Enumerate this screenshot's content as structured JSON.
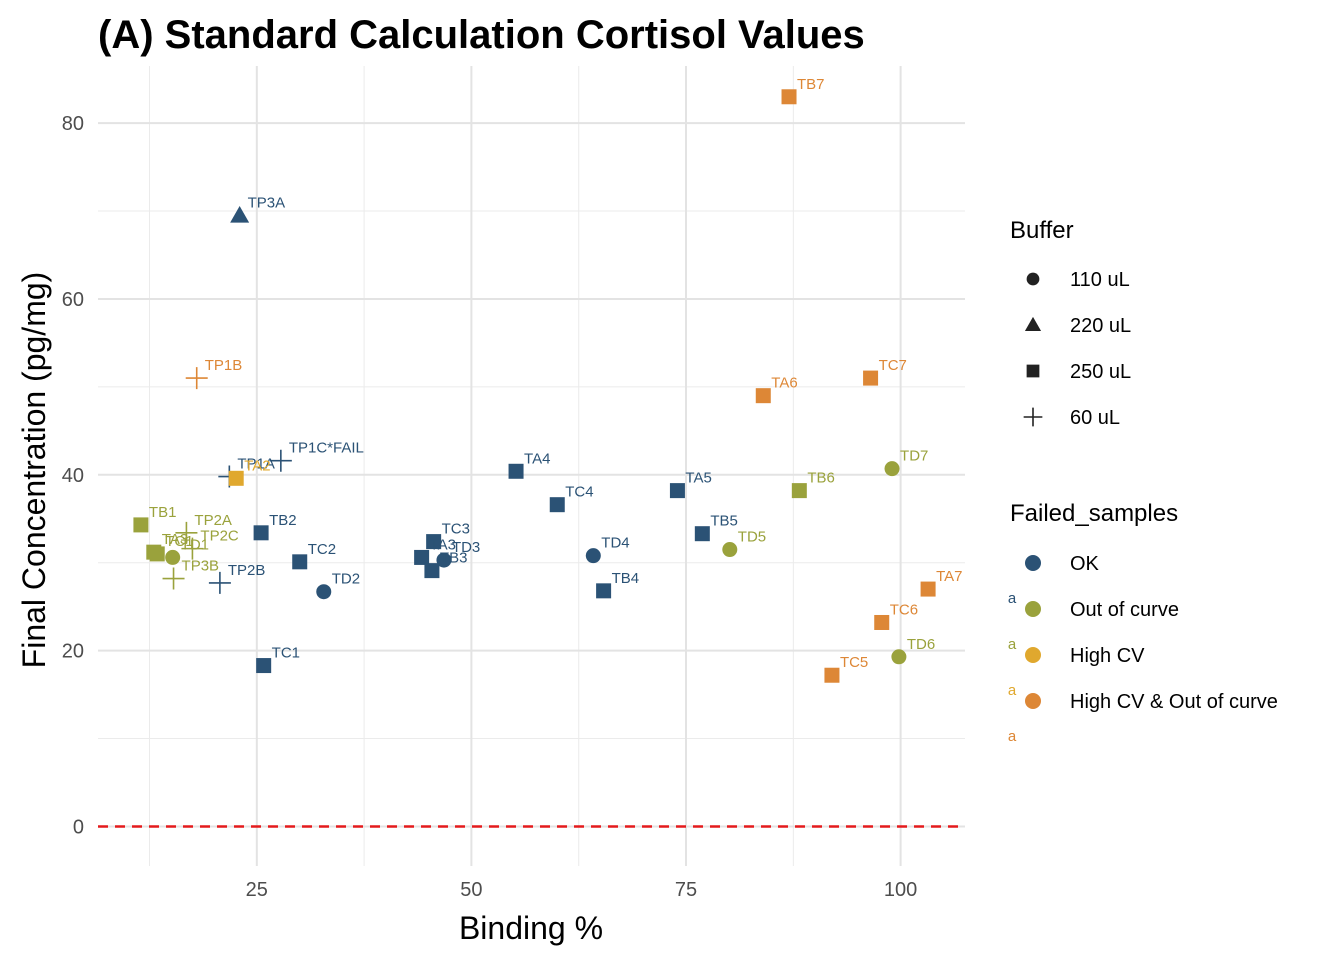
{
  "chart_data": {
    "type": "scatter",
    "title": "(A) Standard Calculation Cortisol Values",
    "xlabel": "Binding %",
    "ylabel": "Final Concentration (pg/mg)",
    "xlim": [
      6.5,
      107.5
    ],
    "ylim": [
      -4.5,
      86.5
    ],
    "x_ticks": [
      25,
      50,
      75,
      100
    ],
    "y_ticks": [
      0,
      20,
      40,
      60,
      80
    ],
    "x_tick_labels": [
      "25",
      "50",
      "75",
      "100"
    ],
    "y_tick_labels": [
      "0",
      "20",
      "40",
      "60",
      "80"
    ],
    "grid": true,
    "reference_line": {
      "y": 0,
      "color": "#e41a1c",
      "style": "dashed"
    },
    "legends": {
      "shape": {
        "title": "Buffer",
        "items": [
          {
            "key": "110 uL",
            "label": "110 uL",
            "shape": "circle"
          },
          {
            "key": "220 uL",
            "label": "220 uL",
            "shape": "triangle"
          },
          {
            "key": "250 uL",
            "label": "250 uL",
            "shape": "square"
          },
          {
            "key": "60 uL",
            "label": "60 uL",
            "shape": "plus"
          }
        ]
      },
      "color": {
        "title": "Failed_samples",
        "items": [
          {
            "key": "OK",
            "label": "OK",
            "color": "#2b5275"
          },
          {
            "key": "Out of curve",
            "label": "Out of curve",
            "color": "#9aa23c"
          },
          {
            "key": "High CV",
            "label": "High CV",
            "color": "#e0a82e"
          },
          {
            "key": "High CV & Out of curve",
            "label": "High CV & Out of curve",
            "color": "#dd8736"
          }
        ],
        "key_glyph_text": "a"
      }
    },
    "points": [
      {
        "label": "TB7",
        "x": 87.0,
        "y": 83.0,
        "buffer": "250 uL",
        "status": "High CV & Out of curve"
      },
      {
        "label": "TP3A",
        "x": 23.0,
        "y": 69.5,
        "buffer": "220 uL",
        "status": "OK"
      },
      {
        "label": "TP1B",
        "x": 18.0,
        "y": 51.0,
        "buffer": "60 uL",
        "status": "High CV & Out of curve"
      },
      {
        "label": "TA6",
        "x": 84.0,
        "y": 49.0,
        "buffer": "250 uL",
        "status": "High CV & Out of curve"
      },
      {
        "label": "TC7",
        "x": 96.5,
        "y": 51.0,
        "buffer": "250 uL",
        "status": "High CV & Out of curve"
      },
      {
        "label": "TP1C*FAIL",
        "x": 27.8,
        "y": 41.6,
        "buffer": "60 uL",
        "status": "OK"
      },
      {
        "label": "TP1A",
        "x": 21.8,
        "y": 39.8,
        "buffer": "60 uL",
        "status": "OK"
      },
      {
        "label": "TA2",
        "x": 22.6,
        "y": 39.6,
        "buffer": "250 uL",
        "status": "High CV"
      },
      {
        "label": "TA4",
        "x": 55.2,
        "y": 40.4,
        "buffer": "250 uL",
        "status": "OK"
      },
      {
        "label": "TC4",
        "x": 60.0,
        "y": 36.6,
        "buffer": "250 uL",
        "status": "OK"
      },
      {
        "label": "TA5",
        "x": 74.0,
        "y": 38.2,
        "buffer": "250 uL",
        "status": "OK"
      },
      {
        "label": "TB6",
        "x": 88.2,
        "y": 38.2,
        "buffer": "250 uL",
        "status": "Out of curve"
      },
      {
        "label": "TD7",
        "x": 99.0,
        "y": 40.7,
        "buffer": "110 uL",
        "status": "Out of curve"
      },
      {
        "label": "TB1",
        "x": 11.5,
        "y": 34.3,
        "buffer": "250 uL",
        "status": "Out of curve"
      },
      {
        "label": "TP2A",
        "x": 16.8,
        "y": 33.4,
        "buffer": "60 uL",
        "status": "Out of curve"
      },
      {
        "label": "TP2C",
        "x": 17.5,
        "y": 31.6,
        "buffer": "60 uL",
        "status": "Out of curve"
      },
      {
        "label": "TA3",
        "x": 13.0,
        "y": 31.2,
        "buffer": "250 uL",
        "status": "Out of curve"
      },
      {
        "label": "TC1",
        "x": 13.4,
        "y": 31.0,
        "buffer": "250 uL",
        "status": "Out of curve"
      },
      {
        "label": "TD1",
        "x": 15.2,
        "y": 30.6,
        "buffer": "110 uL",
        "status": "Out of curve"
      },
      {
        "label": "TP3B",
        "x": 15.3,
        "y": 28.2,
        "buffer": "60 uL",
        "status": "Out of curve"
      },
      {
        "label": "TB2",
        "x": 25.5,
        "y": 33.4,
        "buffer": "250 uL",
        "status": "OK"
      },
      {
        "label": "TP2B",
        "x": 20.7,
        "y": 27.7,
        "buffer": "60 uL",
        "status": "OK"
      },
      {
        "label": "TC2",
        "x": 30.0,
        "y": 30.1,
        "buffer": "250 uL",
        "status": "OK"
      },
      {
        "label": "TD2",
        "x": 32.8,
        "y": 26.7,
        "buffer": "110 uL",
        "status": "OK"
      },
      {
        "label": "TC1",
        "x": 25.8,
        "y": 18.3,
        "buffer": "250 uL",
        "status": "OK"
      },
      {
        "label": "TC3",
        "x": 45.6,
        "y": 32.4,
        "buffer": "250 uL",
        "status": "OK"
      },
      {
        "label": "TA3",
        "x": 44.2,
        "y": 30.6,
        "buffer": "250 uL",
        "status": "OK"
      },
      {
        "label": "TD3",
        "x": 46.8,
        "y": 30.3,
        "buffer": "110 uL",
        "status": "OK"
      },
      {
        "label": "TB3",
        "x": 45.4,
        "y": 29.1,
        "buffer": "250 uL",
        "status": "OK"
      },
      {
        "label": "TD4",
        "x": 64.2,
        "y": 30.8,
        "buffer": "110 uL",
        "status": "OK"
      },
      {
        "label": "TB4",
        "x": 65.4,
        "y": 26.8,
        "buffer": "250 uL",
        "status": "OK"
      },
      {
        "label": "TB5",
        "x": 76.9,
        "y": 33.3,
        "buffer": "250 uL",
        "status": "OK"
      },
      {
        "label": "TD5",
        "x": 80.1,
        "y": 31.5,
        "buffer": "110 uL",
        "status": "Out of curve"
      },
      {
        "label": "TA7",
        "x": 103.2,
        "y": 27.0,
        "buffer": "250 uL",
        "status": "High CV & Out of curve"
      },
      {
        "label": "TC6",
        "x": 97.8,
        "y": 23.2,
        "buffer": "250 uL",
        "status": "High CV & Out of curve"
      },
      {
        "label": "TD6",
        "x": 99.8,
        "y": 19.3,
        "buffer": "110 uL",
        "status": "Out of curve"
      },
      {
        "label": "TC5",
        "x": 92.0,
        "y": 17.2,
        "buffer": "250 uL",
        "status": "High CV & Out of curve"
      }
    ]
  }
}
